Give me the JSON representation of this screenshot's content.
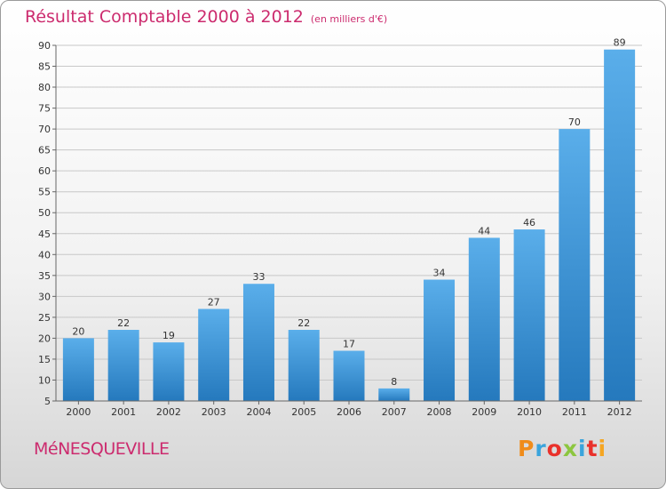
{
  "title": "Résultat Comptable 2000 à 2012",
  "subtitle": "(en milliers d'€)",
  "town": "MéNESQUEVILLE",
  "logo": "Proxiti",
  "logo_colors": [
    "#f08c1a",
    "#3aa4dc",
    "#e9312b",
    "#8cc63f",
    "#3aa4dc",
    "#e9312b",
    "#f5a623"
  ],
  "colors": {
    "title": "#cc2b6e",
    "bar_top": "#5aaeea",
    "bar_bottom": "#2579bd",
    "grid": "#c8c8c8"
  },
  "chart_data": {
    "type": "bar",
    "title": "Résultat Comptable 2000 à 2012",
    "ylabel": "(en milliers d'€)",
    "xlabel": "",
    "categories": [
      "2000",
      "2001",
      "2002",
      "2003",
      "2004",
      "2005",
      "2006",
      "2007",
      "2008",
      "2009",
      "2010",
      "2011",
      "2012"
    ],
    "values": [
      20,
      22,
      19,
      27,
      33,
      22,
      17,
      8,
      34,
      44,
      46,
      70,
      89
    ],
    "ylim": [
      5,
      90
    ],
    "yticks": [
      5,
      10,
      15,
      20,
      25,
      30,
      35,
      40,
      45,
      50,
      55,
      60,
      65,
      70,
      75,
      80,
      85,
      90
    ],
    "grid": true
  }
}
